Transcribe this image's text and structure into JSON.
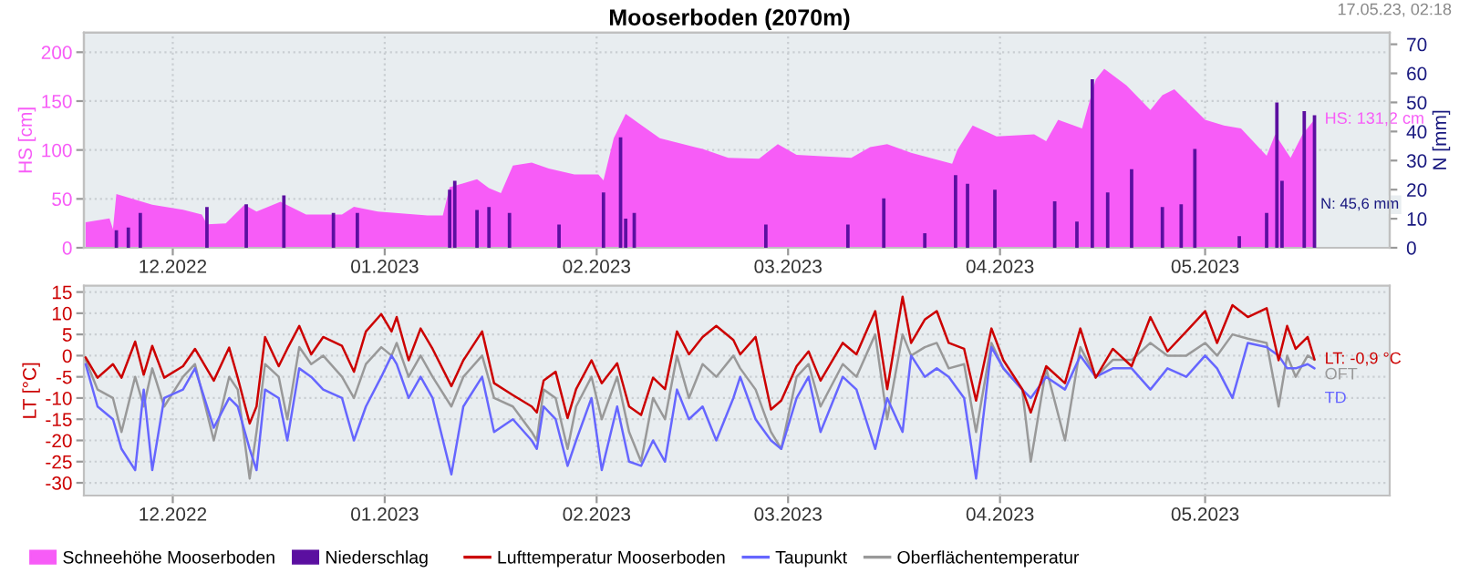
{
  "chart_data": [
    {
      "type": "area",
      "title": "Mooserboden (2070m)",
      "ylabel": "HS [cm]",
      "y2label": "N [mm]",
      "xlim": [
        "2022-11-18",
        "2023-05-28"
      ],
      "ylim": [
        0,
        220
      ],
      "yticks": [
        0,
        50,
        100,
        150,
        200
      ],
      "y2lim": [
        0,
        74
      ],
      "y2ticks": [
        0,
        10,
        20,
        30,
        40,
        50,
        60,
        70
      ],
      "xticks": [
        {
          "value": "2022-12-01",
          "label": "12.2022"
        },
        {
          "value": "2023-01-01",
          "label": "01.2023"
        },
        {
          "value": "2023-02-01",
          "label": "02.2023"
        },
        {
          "value": "2023-03-01",
          "label": "03.2023"
        },
        {
          "value": "2023-04-01",
          "label": "04.2023"
        },
        {
          "value": "2023-05-01",
          "label": "05.2023"
        }
      ],
      "grid": true,
      "legend": "bottom",
      "annotations": [
        "17.05.23, 02:18",
        {
          "text": "HS: 131,2 cm",
          "x": "2023-05-17",
          "y": 131.2
        },
        "N: 45,6 mm"
      ],
      "series": [
        {
          "name": "Schneehöhe Mooserboden",
          "type": "area",
          "color": "#f75cf7",
          "x": [
            "2022-11-18T06:00",
            "2022-11-21T18:00",
            "2022-11-22T06:00",
            "2022-11-22T18:00",
            "2022-11-28",
            "2022-12-02T12:00",
            "2022-12-05T06:00",
            "2022-12-06",
            "2022-12-08T18:00",
            "2022-12-11T12:00",
            "2022-12-13T06:00",
            "2022-12-16T18:00",
            "2022-12-20T12:00",
            "2022-12-25T18:00",
            "2022-12-27T12:00",
            "2022-12-31",
            "2023-01-07T06:00",
            "2023-01-09T12:00",
            "2023-01-10T12:00",
            "2023-01-12T12:00",
            "2023-01-14T12:00",
            "2023-01-16T06:00",
            "2023-01-18",
            "2023-01-19T18:00",
            "2023-01-22T12:00",
            "2023-01-25",
            "2023-01-28T18:00",
            "2023-02-01T06:00",
            "2023-02-02",
            "2023-02-03T12:00",
            "2023-02-05T06:00",
            "2023-02-07",
            "2023-02-10T06:00",
            "2023-02-16T12:00",
            "2023-02-20T06:00",
            "2023-02-24T18:00",
            "2023-02-27T12:00",
            "2023-03-02T06:00",
            "2023-03-10T06:00",
            "2023-03-13",
            "2023-03-15T12:00",
            "2023-03-19",
            "2023-03-25",
            "2023-03-25T18:00",
            "2023-03-28",
            "2023-03-31T12:00",
            "2023-04-06",
            "2023-04-07T18:00",
            "2023-04-09T12:00",
            "2023-04-13",
            "2023-04-15",
            "2023-04-16T06:00",
            "2023-04-19T12:00",
            "2023-04-23",
            "2023-04-24T18:00",
            "2023-04-26T12:00",
            "2023-05-01",
            "2023-05-03T18:00",
            "2023-05-06T06:00",
            "2023-05-10",
            "2023-05-11T06:00",
            "2023-05-13T12:00",
            "2023-05-15T06:00",
            "2023-05-17"
          ],
          "values": [
            26,
            30,
            19,
            55,
            44,
            39,
            34,
            24,
            25,
            44,
            37,
            47,
            34,
            34,
            42,
            37,
            33,
            33,
            62,
            66,
            70,
            61,
            56,
            84,
            87,
            81,
            75,
            75,
            69,
            112,
            137,
            128,
            112,
            101,
            92,
            91,
            106,
            95,
            92,
            103,
            106,
            97,
            86,
            100,
            125,
            114,
            116,
            109,
            131,
            122,
            172,
            183,
            166,
            141,
            156,
            162,
            131,
            125,
            122,
            94,
            116,
            92,
            116,
            131.2
          ]
        },
        {
          "name": "Niederschlag",
          "type": "bar",
          "axis": "y2",
          "color": "#5b0fa0",
          "x": [
            "2022-11-22T18:00",
            "2022-11-24T12:00",
            "2022-11-26T06:00",
            "2022-12-06",
            "2022-12-11T18:00",
            "2022-12-17T06:00",
            "2022-12-24T12:00",
            "2022-12-28",
            "2023-01-10T12:00",
            "2023-01-11T06:00",
            "2023-01-14T12:00",
            "2023-01-16T06:00",
            "2023-01-19T06:00",
            "2023-01-26T12:00",
            "2023-02-02",
            "2023-02-04T12:00",
            "2023-02-05T06:00",
            "2023-02-06T12:00",
            "2023-02-25T18:00",
            "2023-03-09T18:00",
            "2023-03-15",
            "2023-03-21",
            "2023-03-25T12:00",
            "2023-03-27T06:00",
            "2023-03-31T06:00",
            "2023-04-09",
            "2023-04-12T06:00",
            "2023-04-14T12:00",
            "2023-04-16T18:00",
            "2023-04-20T06:00",
            "2023-04-24T18:00",
            "2023-04-27T12:00",
            "2023-04-29T12:00",
            "2023-05-06",
            "2023-05-10",
            "2023-05-11T12:00",
            "2023-05-12T06:00",
            "2023-05-15T12:00",
            "2023-05-17"
          ],
          "values": [
            6,
            7,
            12,
            14,
            15,
            18,
            12,
            12,
            20,
            23,
            13,
            14,
            12,
            8,
            19,
            38,
            10,
            12,
            8,
            8,
            17,
            5,
            25,
            22,
            20,
            16,
            9,
            58,
            19,
            27,
            14,
            15,
            34,
            4,
            12,
            50,
            23,
            47,
            45.6
          ]
        }
      ]
    },
    {
      "type": "line",
      "ylabel": "LT [°C]",
      "xlim": [
        "2022-11-18",
        "2023-05-28"
      ],
      "ylim": [
        -33,
        16.5
      ],
      "yticks": [
        -30,
        -25,
        -20,
        -15,
        -10,
        -5,
        0,
        5,
        10,
        15
      ],
      "xticks": [
        {
          "value": "2022-12-01",
          "label": "12.2022"
        },
        {
          "value": "2023-01-01",
          "label": "01.2023"
        },
        {
          "value": "2023-02-01",
          "label": "02.2023"
        },
        {
          "value": "2023-03-01",
          "label": "03.2023"
        },
        {
          "value": "2023-04-01",
          "label": "04.2023"
        },
        {
          "value": "2023-05-01",
          "label": "05.2023"
        }
      ],
      "grid": true,
      "legend": "bottom",
      "line_style": "solid",
      "marker": "none",
      "annotations": [
        {
          "text": "LT: -0,9 °C",
          "x": "2023-05-17",
          "y": -0.9
        },
        {
          "text": "TD",
          "x": "2023-05-17",
          "y": -3
        },
        {
          "text": "OFT",
          "x": "2023-05-17",
          "y": -1
        }
      ],
      "x": [
        "2022-11-18T06:00",
        "2022-11-20",
        "2022-11-22T06:00",
        "2022-11-23T12:00",
        "2022-11-25T12:00",
        "2022-11-26T18:00",
        "2022-11-28",
        "2022-11-29T18:00",
        "2022-12-02T12:00",
        "2022-12-04T06:00",
        "2022-12-07",
        "2022-12-09T06:00",
        "2022-12-10T12:00",
        "2022-12-12T06:00",
        "2022-12-13T06:00",
        "2022-12-14T12:00",
        "2022-12-16T12:00",
        "2022-12-17T18:00",
        "2022-12-19T12:00",
        "2022-12-21T06:00",
        "2022-12-23",
        "2022-12-25T18:00",
        "2022-12-27T12:00",
        "2022-12-29T06:00",
        "2022-12-31T12:00",
        "2023-01-02",
        "2023-01-02T18:00",
        "2023-01-04T12:00",
        "2023-01-06T06:00",
        "2023-01-08",
        "2023-01-10T18:00",
        "2023-01-12T12:00",
        "2023-01-15T06:00",
        "2023-01-17",
        "2023-01-19T18:00",
        "2023-01-22T12:00",
        "2023-01-23T06:00",
        "2023-01-24T06:00",
        "2023-01-26",
        "2023-01-27T18:00",
        "2023-01-29",
        "2023-01-31T06:00",
        "2023-02-01T18:00",
        "2023-02-04",
        "2023-02-05T18:00",
        "2023-02-07T12:00",
        "2023-02-09T06:00",
        "2023-02-11",
        "2023-02-12T18:00",
        "2023-02-14T12:00",
        "2023-02-16T12:00",
        "2023-02-18T12:00",
        "2023-02-21",
        "2023-02-22",
        "2023-02-24T06:00",
        "2023-02-26T12:00",
        "2023-02-28",
        "2023-03-02T06:00",
        "2023-03-04",
        "2023-03-05T18:00",
        "2023-03-09",
        "2023-03-11",
        "2023-03-13T18:00",
        "2023-03-15T12:00",
        "2023-03-17T18:00",
        "2023-03-19",
        "2023-03-21",
        "2023-03-22T18:00",
        "2023-03-24T12:00",
        "2023-03-26T18:00",
        "2023-03-28T12:00",
        "2023-03-30T18:00",
        "2023-04-01T12:00",
        "2023-04-04T06:00",
        "2023-04-05T12:00",
        "2023-04-07T18:00",
        "2023-04-10T12:00",
        "2023-04-12T18:00",
        "2023-04-15",
        "2023-04-17T12:00",
        "2023-04-20T06:00",
        "2023-04-23",
        "2023-04-25T12:00",
        "2023-04-28T06:00",
        "2023-05-01",
        "2023-05-02T18:00",
        "2023-05-05",
        "2023-05-07T06:00",
        "2023-05-10",
        "2023-05-11T18:00",
        "2023-05-13",
        "2023-05-14T06:00",
        "2023-05-16",
        "2023-05-17"
      ],
      "series": [
        {
          "name": "Lufttemperatur Mooserboden",
          "color": "#cc0000",
          "values": [
            -0.4,
            -5.2,
            -2,
            -5.2,
            3.3,
            -4.5,
            2.3,
            -5.2,
            -2.5,
            1.6,
            -5.9,
            1.9,
            -5.2,
            -16,
            -12,
            4.4,
            -2.5,
            1.6,
            7,
            0.3,
            4.4,
            2.3,
            -3.8,
            5.7,
            9.8,
            5.7,
            9.1,
            -1.1,
            6.4,
            1.6,
            -7.2,
            -1.1,
            5.7,
            -6.5,
            -9.3,
            -12,
            -13.4,
            -5.9,
            -3.8,
            -14.7,
            -7.9,
            -1.1,
            -6.5,
            -1.8,
            -12,
            -14,
            -5.2,
            -7.9,
            5.7,
            0.3,
            4.4,
            7,
            3.7,
            0.3,
            4.4,
            -12.7,
            -10.6,
            -2.5,
            1,
            -5.9,
            3,
            0.3,
            10.5,
            -7.9,
            13.9,
            3,
            8.5,
            10.5,
            3,
            1.6,
            -10.6,
            6.4,
            -1.1,
            -7.9,
            -13.4,
            -2.5,
            -6.5,
            6.4,
            -5.2,
            1.6,
            -2.5,
            9.1,
            1,
            5.7,
            10.5,
            3,
            11.9,
            9.1,
            11.2,
            -1.1,
            7,
            1.6,
            4.4,
            -0.9
          ]
        },
        {
          "name": "Taupunkt",
          "color": "#6666ff",
          "values": [
            -2,
            -12,
            -15,
            -22,
            -27,
            -8,
            -27,
            -10,
            -8,
            -3,
            -17,
            -10,
            -12,
            -22,
            -27,
            -8,
            -10,
            -20,
            -3,
            -5,
            -8,
            -10,
            -20,
            -12,
            -5,
            0,
            -2,
            -10,
            -5,
            -10,
            -28,
            -12,
            -5,
            -18,
            -15,
            -20,
            -22,
            -12,
            -15,
            -26,
            -20,
            -10,
            -27,
            -12,
            -25,
            -26,
            -20,
            -25,
            -8,
            -15,
            -12,
            -20,
            -10,
            -5,
            -15,
            -20,
            -22,
            -10,
            -5,
            -18,
            -5,
            -8,
            -22,
            -10,
            -18,
            0,
            -5,
            -3,
            -5,
            -10,
            -29,
            2,
            -3,
            -8,
            -10,
            -5,
            -8,
            0,
            -5,
            -3,
            -3,
            -8,
            -3,
            -5,
            0,
            -3,
            -10,
            3,
            2,
            0,
            -3,
            -3,
            -2,
            -3
          ]
        },
        {
          "name": "Oberflächentemperatur",
          "color": "#999999",
          "values": [
            -1,
            -8,
            -10,
            -18,
            -5,
            -12,
            -3,
            -12,
            -5,
            -2,
            -20,
            -5,
            -8,
            -29,
            -18,
            -2,
            -5,
            -15,
            2,
            -2,
            0,
            -5,
            -10,
            -2,
            2,
            0,
            3,
            -5,
            0,
            -5,
            -12,
            -5,
            0,
            -10,
            -12,
            -18,
            -20,
            -8,
            -10,
            -22,
            -12,
            -5,
            -15,
            -5,
            -18,
            -25,
            -10,
            -15,
            0,
            -10,
            -2,
            -5,
            0,
            -3,
            -8,
            -18,
            -22,
            -5,
            -2,
            -12,
            -2,
            -5,
            5,
            -15,
            5,
            0,
            2,
            3,
            -3,
            -2,
            -18,
            3,
            -3,
            -8,
            -25,
            -3,
            -20,
            2,
            -5,
            -1,
            -1,
            3,
            0,
            0,
            3,
            0,
            5,
            4,
            3,
            -12,
            0,
            -5,
            0,
            -1
          ]
        }
      ]
    }
  ]
}
